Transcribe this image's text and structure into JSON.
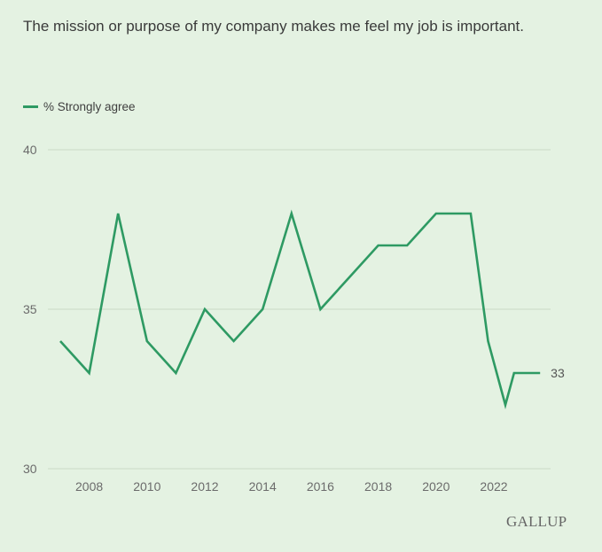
{
  "chart_data": {
    "type": "line",
    "title": "The mission or purpose of my company makes me feel my job is important.",
    "xlabel": "",
    "ylabel": "",
    "xlim": [
      2007,
      2023.6
    ],
    "ylim": [
      30,
      40
    ],
    "y_ticks": [
      30,
      35,
      40
    ],
    "x_ticks": [
      2008,
      2010,
      2012,
      2014,
      2016,
      2018,
      2020,
      2022
    ],
    "grid": true,
    "legend_position": "top-left",
    "series": [
      {
        "name": "% Strongly agree",
        "color": "#2e9a63",
        "x": [
          2007,
          2008,
          2009,
          2010,
          2011,
          2012,
          2013,
          2014,
          2015,
          2016,
          2017,
          2018,
          2019,
          2020,
          2021.2,
          2021.8,
          2022.4,
          2022.7,
          2023.6
        ],
        "values": [
          34,
          33,
          38,
          34,
          33,
          35,
          34,
          35,
          38,
          35,
          36,
          37,
          37,
          38,
          38,
          34,
          32,
          33,
          33
        ],
        "end_label": "33"
      }
    ]
  },
  "logo": "GALLUP"
}
